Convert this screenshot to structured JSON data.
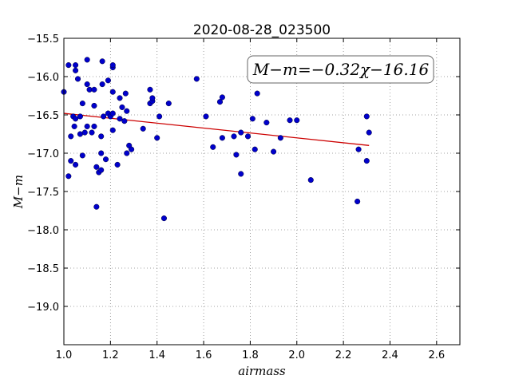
{
  "chart_data": {
    "type": "scatter",
    "title": "2020-08-28_023500",
    "xlabel": "airmass",
    "ylabel": "M−m",
    "annotation": "M−m=−0.32χ−16.16",
    "xlim": [
      1.0,
      2.7
    ],
    "ylim": [
      -15.5,
      -19.5
    ],
    "y_inverted": true,
    "grid": true,
    "x_ticks": [
      1.0,
      1.2,
      1.4,
      1.6,
      1.8,
      2.0,
      2.2,
      2.4,
      2.6
    ],
    "x_tick_labels": [
      "1.0",
      "1.2",
      "1.4",
      "1.6",
      "1.8",
      "2.0",
      "2.2",
      "2.4",
      "2.6"
    ],
    "y_ticks": [
      -15.5,
      -16.0,
      -16.5,
      -17.0,
      -17.5,
      -18.0,
      -18.5,
      -19.0
    ],
    "y_tick_labels": [
      "−15.5",
      "−16.0",
      "−16.5",
      "−17.0",
      "−17.5",
      "−18.0",
      "−18.5",
      "−19.0"
    ],
    "colors": {
      "points": "#0000cc",
      "fit": "#cc0000",
      "grid": "#888888"
    },
    "fit": {
      "slope": -0.32,
      "intercept": -16.16,
      "x_range": [
        1.0,
        2.31
      ]
    },
    "points": [
      [
        1.0,
        -16.2
      ],
      [
        1.02,
        -15.85
      ],
      [
        1.03,
        -16.78
      ],
      [
        1.03,
        -17.1
      ],
      [
        1.02,
        -17.3
      ],
      [
        1.04,
        -16.52
      ],
      [
        1.045,
        -16.65
      ],
      [
        1.05,
        -15.92
      ],
      [
        1.05,
        -16.55
      ],
      [
        1.05,
        -17.15
      ],
      [
        1.05,
        -15.85
      ],
      [
        1.06,
        -16.03
      ],
      [
        1.07,
        -16.52
      ],
      [
        1.07,
        -16.75
      ],
      [
        1.08,
        -16.35
      ],
      [
        1.08,
        -17.03
      ],
      [
        1.09,
        -16.73
      ],
      [
        1.1,
        -16.1
      ],
      [
        1.1,
        -16.65
      ],
      [
        1.1,
        -15.78
      ],
      [
        1.11,
        -16.17
      ],
      [
        1.12,
        -16.73
      ],
      [
        1.13,
        -16.38
      ],
      [
        1.13,
        -16.65
      ],
      [
        1.13,
        -16.17
      ],
      [
        1.14,
        -17.18
      ],
      [
        1.14,
        -17.7
      ],
      [
        1.15,
        -17.25
      ],
      [
        1.16,
        -17.22
      ],
      [
        1.16,
        -17.0
      ],
      [
        1.16,
        -16.78
      ],
      [
        1.165,
        -16.1
      ],
      [
        1.165,
        -15.8
      ],
      [
        1.17,
        -16.52
      ],
      [
        1.18,
        -17.08
      ],
      [
        1.19,
        -16.48
      ],
      [
        1.19,
        -16.05
      ],
      [
        1.2,
        -16.52
      ],
      [
        1.21,
        -16.7
      ],
      [
        1.21,
        -16.48
      ],
      [
        1.21,
        -15.88
      ],
      [
        1.21,
        -16.2
      ],
      [
        1.21,
        -15.85
      ],
      [
        1.23,
        -17.15
      ],
      [
        1.24,
        -16.55
      ],
      [
        1.24,
        -16.28
      ],
      [
        1.25,
        -16.4
      ],
      [
        1.26,
        -16.58
      ],
      [
        1.265,
        -16.22
      ],
      [
        1.27,
        -17.0
      ],
      [
        1.27,
        -16.45
      ],
      [
        1.28,
        -16.9
      ],
      [
        1.29,
        -16.95
      ],
      [
        1.34,
        -16.68
      ],
      [
        1.37,
        -16.35
      ],
      [
        1.37,
        -16.17
      ],
      [
        1.38,
        -16.32
      ],
      [
        1.38,
        -16.28
      ],
      [
        1.4,
        -16.8
      ],
      [
        1.41,
        -16.52
      ],
      [
        1.43,
        -17.85
      ],
      [
        1.45,
        -16.35
      ],
      [
        1.57,
        -16.03
      ],
      [
        1.61,
        -16.52
      ],
      [
        1.64,
        -16.92
      ],
      [
        1.67,
        -16.33
      ],
      [
        1.68,
        -16.27
      ],
      [
        1.68,
        -16.8
      ],
      [
        1.73,
        -16.78
      ],
      [
        1.74,
        -17.02
      ],
      [
        1.76,
        -17.27
      ],
      [
        1.76,
        -16.73
      ],
      [
        1.79,
        -16.78
      ],
      [
        1.81,
        -16.55
      ],
      [
        1.82,
        -16.95
      ],
      [
        1.83,
        -16.22
      ],
      [
        1.87,
        -16.6
      ],
      [
        1.9,
        -16.98
      ],
      [
        1.93,
        -16.8
      ],
      [
        1.97,
        -16.57
      ],
      [
        2.0,
        -16.57
      ],
      [
        2.06,
        -17.35
      ],
      [
        2.26,
        -17.63
      ],
      [
        2.265,
        -16.95
      ],
      [
        2.3,
        -17.1
      ],
      [
        2.3,
        -16.52
      ],
      [
        2.31,
        -16.73
      ]
    ]
  }
}
